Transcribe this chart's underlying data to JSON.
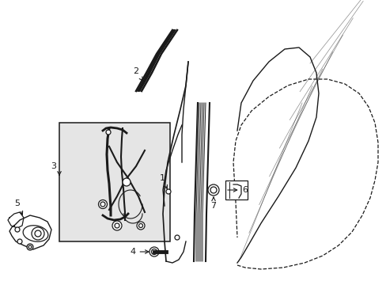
{
  "bg_color": "#ffffff",
  "line_color": "#1a1a1a",
  "box_bg": "#e8e8e8",
  "figsize": [
    4.89,
    3.6
  ],
  "dpi": 100,
  "font_size": 8,
  "lw": 0.9
}
